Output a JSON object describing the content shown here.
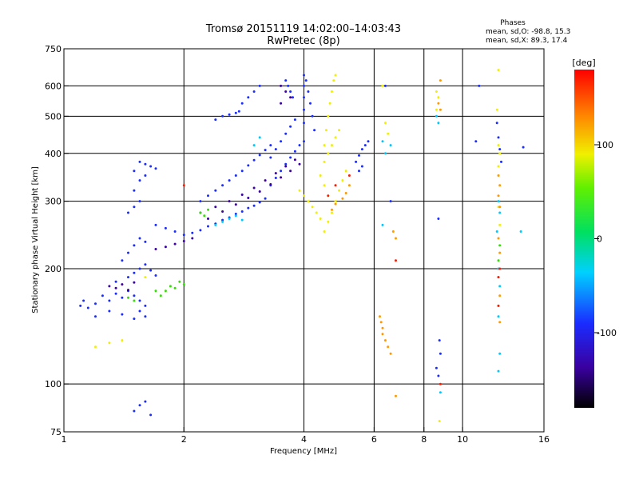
{
  "chart_data": {
    "type": "scatter",
    "title": "Tromsø 20151119 14:02:00–14:03:43",
    "subtitle": "RwPretec (8p)",
    "xlabel": "Frequency [MHz]",
    "ylabel": "Stationary phase Virtual Height [km]",
    "x_scale": "log",
    "y_scale": "log",
    "xlim": [
      1,
      16
    ],
    "ylim": [
      75,
      750
    ],
    "x_ticks": [
      1,
      2,
      4,
      6,
      8,
      10,
      16
    ],
    "x_tick_labels": [
      "1",
      "2",
      "4",
      "6",
      "8",
      "10",
      "16"
    ],
    "y_ticks": [
      75,
      100,
      200,
      300,
      400,
      500,
      600,
      750
    ],
    "y_tick_labels": [
      "75",
      "100",
      "200",
      "300",
      "400",
      "500",
      "600",
      "750"
    ],
    "grid": true,
    "phases_info": {
      "heading": "Phases",
      "line_o": "mean, sd,O: -98.8, 15.3",
      "line_x": "mean, sd,X:  89.3, 17.4"
    },
    "colorbar": {
      "label": "[deg]",
      "range": [
        -180,
        180
      ],
      "ticks": [
        100,
        0,
        -100
      ],
      "tick_labels": [
        "100",
        "0",
        "-100"
      ]
    },
    "colors": {
      "purple": "#3a00a0",
      "blue": "#1a2cff",
      "cyan": "#00c8ff",
      "green": "#30e000",
      "yellow": "#f0f000",
      "orange": "#ff9900",
      "red": "#ff1a00"
    },
    "series": [
      {
        "color": "blue",
        "points": [
          [
            1.1,
            160
          ],
          [
            1.12,
            165
          ],
          [
            1.15,
            158
          ],
          [
            1.2,
            162
          ],
          [
            1.25,
            170
          ],
          [
            1.3,
            165
          ],
          [
            1.35,
            172
          ],
          [
            1.4,
            168
          ],
          [
            1.45,
            175
          ],
          [
            1.5,
            170
          ],
          [
            1.55,
            165
          ],
          [
            1.6,
            160
          ],
          [
            1.2,
            150
          ],
          [
            1.3,
            155
          ],
          [
            1.4,
            152
          ],
          [
            1.5,
            148
          ],
          [
            1.55,
            155
          ],
          [
            1.6,
            150
          ],
          [
            1.35,
            185
          ],
          [
            1.45,
            190
          ],
          [
            1.5,
            195
          ],
          [
            1.55,
            200
          ],
          [
            1.6,
            205
          ],
          [
            1.65,
            198
          ],
          [
            1.7,
            192
          ],
          [
            1.4,
            210
          ],
          [
            1.45,
            220
          ],
          [
            1.5,
            230
          ],
          [
            1.55,
            240
          ],
          [
            1.6,
            235
          ],
          [
            1.45,
            280
          ],
          [
            1.5,
            290
          ],
          [
            1.55,
            300
          ],
          [
            1.5,
            320
          ],
          [
            1.55,
            340
          ],
          [
            1.5,
            360
          ],
          [
            1.55,
            380
          ],
          [
            1.6,
            375
          ],
          [
            1.65,
            370
          ],
          [
            1.7,
            365
          ],
          [
            1.6,
            350
          ],
          [
            1.5,
            85
          ],
          [
            1.55,
            88
          ],
          [
            1.6,
            90
          ],
          [
            1.65,
            83
          ],
          [
            1.7,
            260
          ],
          [
            1.8,
            255
          ],
          [
            1.9,
            250
          ],
          [
            2.0,
            245
          ],
          [
            2.1,
            248
          ],
          [
            2.2,
            252
          ],
          [
            2.3,
            258
          ],
          [
            2.4,
            262
          ],
          [
            2.5,
            268
          ],
          [
            2.6,
            272
          ],
          [
            2.7,
            278
          ],
          [
            2.8,
            282
          ],
          [
            2.9,
            288
          ],
          [
            3.0,
            292
          ],
          [
            3.1,
            298
          ],
          [
            3.2,
            305
          ],
          [
            2.2,
            300
          ],
          [
            2.3,
            310
          ],
          [
            2.4,
            320
          ],
          [
            2.5,
            330
          ],
          [
            2.6,
            340
          ],
          [
            2.7,
            350
          ],
          [
            2.8,
            360
          ],
          [
            2.9,
            372
          ],
          [
            3.0,
            384
          ],
          [
            3.1,
            396
          ],
          [
            3.2,
            408
          ],
          [
            3.3,
            420
          ],
          [
            2.4,
            490
          ],
          [
            2.5,
            500
          ],
          [
            2.6,
            505
          ],
          [
            2.7,
            510
          ],
          [
            2.75,
            515
          ],
          [
            2.8,
            540
          ],
          [
            2.9,
            560
          ],
          [
            3.0,
            580
          ],
          [
            3.1,
            600
          ],
          [
            3.3,
            390
          ],
          [
            3.4,
            410
          ],
          [
            3.5,
            430
          ],
          [
            3.6,
            450
          ],
          [
            3.7,
            470
          ],
          [
            3.8,
            490
          ],
          [
            3.3,
            330
          ],
          [
            3.4,
            345
          ],
          [
            3.5,
            360
          ],
          [
            3.6,
            375
          ],
          [
            3.7,
            390
          ],
          [
            3.8,
            405
          ],
          [
            3.9,
            420
          ],
          [
            4.0,
            430
          ],
          [
            4.0,
            480
          ],
          [
            4.0,
            520
          ],
          [
            4.0,
            560
          ],
          [
            4.0,
            600
          ],
          [
            4.0,
            640
          ],
          [
            4.05,
            620
          ],
          [
            4.1,
            580
          ],
          [
            4.15,
            540
          ],
          [
            4.2,
            500
          ],
          [
            4.25,
            460
          ],
          [
            3.6,
            620
          ],
          [
            3.65,
            600
          ],
          [
            3.7,
            580
          ],
          [
            3.75,
            560
          ],
          [
            5.4,
            380
          ],
          [
            5.5,
            395
          ],
          [
            5.6,
            410
          ],
          [
            5.7,
            420
          ],
          [
            5.5,
            360
          ],
          [
            5.6,
            370
          ],
          [
            5.8,
            430
          ],
          [
            6.4,
            600
          ],
          [
            6.6,
            300
          ],
          [
            8.7,
            270
          ],
          [
            8.75,
            130
          ],
          [
            8.8,
            120
          ],
          [
            8.6,
            110
          ],
          [
            8.7,
            105
          ],
          [
            10.8,
            430
          ],
          [
            12.2,
            480
          ],
          [
            12.3,
            440
          ],
          [
            12.4,
            410
          ],
          [
            12.5,
            380
          ],
          [
            14.2,
            415
          ],
          [
            11.0,
            600
          ]
        ]
      },
      {
        "color": "purple",
        "points": [
          [
            2.2,
            280
          ],
          [
            2.4,
            290
          ],
          [
            2.6,
            300
          ],
          [
            2.8,
            312
          ],
          [
            3.0,
            325
          ],
          [
            3.2,
            340
          ],
          [
            3.4,
            355
          ],
          [
            3.6,
            370
          ],
          [
            3.8,
            385
          ],
          [
            2.3,
            270
          ],
          [
            2.5,
            282
          ],
          [
            2.7,
            294
          ],
          [
            2.9,
            306
          ],
          [
            3.1,
            318
          ],
          [
            3.3,
            332
          ],
          [
            3.5,
            346
          ],
          [
            3.7,
            360
          ],
          [
            3.9,
            375
          ],
          [
            1.3,
            180
          ],
          [
            1.35,
            178
          ],
          [
            1.4,
            182
          ],
          [
            1.45,
            176
          ],
          [
            1.5,
            184
          ],
          [
            1.7,
            225
          ],
          [
            1.8,
            228
          ],
          [
            1.9,
            232
          ],
          [
            2.0,
            236
          ],
          [
            2.1,
            240
          ],
          [
            3.5,
            600
          ],
          [
            3.6,
            580
          ],
          [
            3.7,
            560
          ],
          [
            3.5,
            540
          ]
        ]
      },
      {
        "color": "cyan",
        "points": [
          [
            2.4,
            260
          ],
          [
            2.5,
            265
          ],
          [
            2.6,
            270
          ],
          [
            2.7,
            275
          ],
          [
            2.8,
            268
          ],
          [
            3.0,
            420
          ],
          [
            3.1,
            440
          ],
          [
            6.3,
            430
          ],
          [
            6.4,
            400
          ],
          [
            6.3,
            260
          ],
          [
            6.6,
            420
          ],
          [
            8.6,
            500
          ],
          [
            8.7,
            480
          ],
          [
            12.3,
            300
          ],
          [
            12.4,
            280
          ],
          [
            12.2,
            250
          ],
          [
            12.3,
            200
          ],
          [
            12.4,
            180
          ],
          [
            12.3,
            150
          ],
          [
            12.4,
            120
          ],
          [
            12.3,
            108
          ],
          [
            8.8,
            95
          ],
          [
            14.0,
            250
          ]
        ]
      },
      {
        "color": "green",
        "points": [
          [
            1.8,
            175
          ],
          [
            1.85,
            180
          ],
          [
            1.9,
            178
          ],
          [
            1.95,
            185
          ],
          [
            2.0,
            182
          ],
          [
            1.75,
            170
          ],
          [
            1.7,
            175
          ],
          [
            2.2,
            280
          ],
          [
            2.3,
            285
          ],
          [
            2.25,
            275
          ],
          [
            1.45,
            168
          ],
          [
            1.5,
            165
          ],
          [
            12.4,
            230
          ],
          [
            12.3,
            210
          ]
        ]
      },
      {
        "color": "yellow",
        "points": [
          [
            4.5,
            250
          ],
          [
            4.6,
            265
          ],
          [
            4.7,
            280
          ],
          [
            4.8,
            300
          ],
          [
            4.9,
            320
          ],
          [
            5.0,
            340
          ],
          [
            5.1,
            360
          ],
          [
            4.5,
            380
          ],
          [
            4.5,
            420
          ],
          [
            4.55,
            460
          ],
          [
            4.6,
            500
          ],
          [
            4.65,
            540
          ],
          [
            4.7,
            580
          ],
          [
            4.75,
            620
          ],
          [
            4.8,
            640
          ],
          [
            4.6,
            400
          ],
          [
            4.7,
            420
          ],
          [
            4.8,
            440
          ],
          [
            4.9,
            460
          ],
          [
            4.4,
            270
          ],
          [
            4.3,
            280
          ],
          [
            4.2,
            290
          ],
          [
            4.1,
            300
          ],
          [
            4.0,
            310
          ],
          [
            3.9,
            320
          ],
          [
            4.4,
            350
          ],
          [
            4.5,
            330
          ],
          [
            4.6,
            310
          ],
          [
            1.2,
            125
          ],
          [
            1.3,
            128
          ],
          [
            1.4,
            130
          ],
          [
            1.6,
            190
          ],
          [
            6.3,
            600
          ],
          [
            6.4,
            480
          ],
          [
            6.5,
            450
          ],
          [
            12.3,
            660
          ],
          [
            12.2,
            520
          ],
          [
            12.3,
            420
          ],
          [
            12.4,
            400
          ],
          [
            12.3,
            370
          ],
          [
            12.3,
            290
          ],
          [
            12.4,
            260
          ],
          [
            8.6,
            580
          ],
          [
            8.7,
            560
          ],
          [
            8.6,
            520
          ],
          [
            8.75,
            80
          ]
        ]
      },
      {
        "color": "orange",
        "points": [
          [
            4.7,
            285
          ],
          [
            4.8,
            295
          ],
          [
            5.0,
            305
          ],
          [
            5.1,
            315
          ],
          [
            5.2,
            330
          ],
          [
            6.2,
            150
          ],
          [
            6.25,
            145
          ],
          [
            6.3,
            140
          ],
          [
            6.3,
            135
          ],
          [
            6.4,
            130
          ],
          [
            6.5,
            125
          ],
          [
            6.6,
            120
          ],
          [
            6.8,
            93
          ],
          [
            6.7,
            250
          ],
          [
            6.8,
            240
          ],
          [
            8.8,
            620
          ],
          [
            8.7,
            540
          ],
          [
            8.8,
            520
          ],
          [
            12.3,
            350
          ],
          [
            12.4,
            330
          ],
          [
            12.3,
            310
          ],
          [
            12.4,
            290
          ],
          [
            12.3,
            240
          ],
          [
            12.4,
            220
          ],
          [
            12.3,
            190
          ],
          [
            12.4,
            170
          ],
          [
            12.3,
            160
          ],
          [
            12.4,
            145
          ]
        ]
      },
      {
        "color": "red",
        "points": [
          [
            4.6,
            310
          ],
          [
            4.8,
            330
          ],
          [
            5.2,
            350
          ],
          [
            2.0,
            330
          ],
          [
            6.8,
            210
          ],
          [
            8.8,
            100
          ],
          [
            12.3,
            190
          ],
          [
            12.4,
            200
          ],
          [
            12.3,
            160
          ]
        ]
      }
    ]
  }
}
